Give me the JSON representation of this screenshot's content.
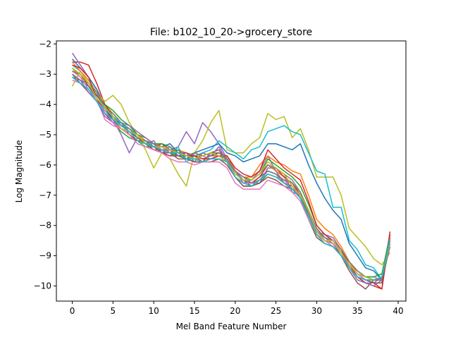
{
  "chart_data": {
    "type": "line",
    "title": "File: b102_10_20->grocery_store",
    "xlabel": "Mel Band Feature Number",
    "ylabel": "Log Magnitude",
    "xlim": [
      -1.95,
      40.95
    ],
    "ylim": [
      -10.5,
      -1.9
    ],
    "xticks": [
      0,
      5,
      10,
      15,
      20,
      25,
      30,
      35,
      40
    ],
    "yticks": [
      -10,
      -9,
      -8,
      -7,
      -6,
      -5,
      -4,
      -3,
      -2
    ],
    "xtick_labels": [
      "0",
      "5",
      "10",
      "15",
      "20",
      "25",
      "30",
      "35",
      "40"
    ],
    "ytick_labels": [
      "−10",
      "−9",
      "−8",
      "−7",
      "−6",
      "−5",
      "−4",
      "−3",
      "−2"
    ],
    "grid": false,
    "legend": "none",
    "x": [
      0,
      1,
      2,
      3,
      4,
      5,
      6,
      7,
      8,
      9,
      10,
      11,
      12,
      13,
      14,
      15,
      16,
      17,
      18,
      19,
      20,
      21,
      22,
      23,
      24,
      25,
      26,
      27,
      28,
      29,
      30,
      31,
      32,
      33,
      34,
      35,
      36,
      37,
      38,
      39
    ],
    "base_curve": [
      -2.9,
      -3.15,
      -3.35,
      -3.75,
      -4.15,
      -4.45,
      -4.7,
      -4.9,
      -5.1,
      -5.25,
      -5.35,
      -5.45,
      -5.55,
      -5.6,
      -5.7,
      -5.75,
      -5.8,
      -5.75,
      -5.65,
      -5.8,
      -6.3,
      -6.55,
      -6.6,
      -6.45,
      -6.2,
      -6.3,
      -6.5,
      -6.7,
      -7.0,
      -7.6,
      -8.2,
      -8.5,
      -8.6,
      -8.9,
      -9.3,
      -9.6,
      -9.75,
      -9.8,
      -9.75,
      -8.4
    ],
    "colors": [
      "#1f77b4",
      "#ff7f0e",
      "#2ca02c",
      "#d62728",
      "#9467bd",
      "#8c564b",
      "#e377c2",
      "#7f7f7f",
      "#bcbd22",
      "#17becf"
    ],
    "series": [
      {
        "values": [
          -3.0,
          -3.2,
          -3.4,
          -3.8,
          -4.2,
          -4.5,
          -4.8,
          -5.0,
          -5.2,
          -5.3,
          -5.4,
          -5.5,
          -5.5,
          -5.7,
          -5.8,
          -5.8,
          -5.9,
          -5.8,
          -5.7,
          -5.9,
          -6.4,
          -6.6,
          -6.6,
          -6.4,
          -6.2,
          -6.3,
          -6.5,
          -6.6,
          -7.0,
          -7.6,
          -8.2,
          -8.5,
          -8.6,
          -8.9,
          -9.3,
          -9.6,
          -9.8,
          -9.9,
          -9.9,
          -8.5
        ]
      },
      {
        "values": [
          -2.8,
          -3.1,
          -3.3,
          -3.6,
          -4.0,
          -4.3,
          -4.6,
          -4.8,
          -5.0,
          -5.1,
          -5.3,
          -5.4,
          -5.6,
          -5.5,
          -5.6,
          -5.7,
          -5.7,
          -5.6,
          -5.6,
          -5.7,
          -6.2,
          -6.4,
          -6.5,
          -6.3,
          -6.0,
          -6.2,
          -6.4,
          -6.8,
          -7.1,
          -7.7,
          -8.3,
          -8.6,
          -8.7,
          -9.0,
          -9.4,
          -9.7,
          -9.8,
          -9.8,
          -9.8,
          -8.4
        ]
      },
      {
        "values": [
          -3.1,
          -3.3,
          -3.5,
          -3.9,
          -4.3,
          -4.6,
          -4.9,
          -5.1,
          -5.2,
          -5.4,
          -5.4,
          -5.5,
          -5.6,
          -5.7,
          -5.8,
          -5.9,
          -5.9,
          -5.9,
          -5.8,
          -5.9,
          -6.4,
          -6.7,
          -6.7,
          -6.6,
          -6.3,
          -6.4,
          -6.6,
          -6.8,
          -7.1,
          -7.6,
          -8.1,
          -8.4,
          -8.5,
          -8.8,
          -9.2,
          -9.5,
          -9.7,
          -9.7,
          -9.6,
          -8.3
        ]
      },
      {
        "values": [
          -2.6,
          -2.6,
          -2.7,
          -3.3,
          -4.0,
          -4.4,
          -4.7,
          -4.8,
          -5.0,
          -5.2,
          -5.4,
          -5.3,
          -5.5,
          -5.6,
          -5.6,
          -5.7,
          -5.8,
          -5.7,
          -5.6,
          -5.8,
          -6.3,
          -6.5,
          -6.6,
          -6.4,
          -6.0,
          -6.1,
          -6.4,
          -6.6,
          -7.0,
          -7.5,
          -8.2,
          -8.5,
          -8.6,
          -8.9,
          -9.3,
          -9.7,
          -9.8,
          -9.9,
          -10.1,
          -8.2
        ]
      },
      {
        "values": [
          -2.3,
          -2.7,
          -3.1,
          -3.5,
          -4.0,
          -4.5,
          -5.0,
          -5.6,
          -5.1,
          -5.3,
          -5.2,
          -5.6,
          -5.5,
          -5.4,
          -4.9,
          -5.3,
          -4.6,
          -4.9,
          -5.3,
          -5.8,
          -6.2,
          -6.6,
          -6.5,
          -6.2,
          -5.7,
          -6.2,
          -6.6,
          -6.8,
          -7.0,
          -7.5,
          -8.2,
          -8.3,
          -8.4,
          -8.8,
          -9.4,
          -9.7,
          -9.9,
          -9.9,
          -9.7,
          -8.6
        ]
      },
      {
        "values": [
          -3.0,
          -3.3,
          -3.6,
          -3.9,
          -4.2,
          -4.5,
          -4.6,
          -5.0,
          -5.2,
          -5.2,
          -5.4,
          -5.6,
          -5.6,
          -5.5,
          -5.8,
          -5.7,
          -5.9,
          -5.6,
          -5.5,
          -5.9,
          -6.2,
          -6.5,
          -6.7,
          -6.5,
          -6.2,
          -6.3,
          -6.6,
          -6.7,
          -7.1,
          -7.7,
          -8.3,
          -8.5,
          -8.6,
          -9.0,
          -9.5,
          -9.9,
          -10.1,
          -9.8,
          -9.8,
          -8.6
        ]
      },
      {
        "values": [
          -2.9,
          -3.1,
          -3.5,
          -3.8,
          -4.5,
          -4.7,
          -4.8,
          -4.9,
          -5.0,
          -5.3,
          -5.4,
          -5.4,
          -5.6,
          -5.6,
          -5.8,
          -5.8,
          -5.7,
          -5.8,
          -5.8,
          -5.9,
          -6.4,
          -6.6,
          -6.6,
          -6.5,
          -6.3,
          -6.4,
          -6.5,
          -6.8,
          -7.0,
          -7.5,
          -8.1,
          -8.5,
          -8.7,
          -9.0,
          -9.3,
          -9.5,
          -9.7,
          -9.7,
          -9.8,
          -8.5
        ]
      },
      {
        "values": [
          -3.1,
          -3.2,
          -3.3,
          -3.7,
          -4.1,
          -4.3,
          -4.6,
          -4.9,
          -5.1,
          -5.2,
          -5.3,
          -5.5,
          -5.5,
          -5.6,
          -5.7,
          -5.7,
          -5.8,
          -5.7,
          -5.7,
          -5.8,
          -6.3,
          -6.5,
          -6.6,
          -6.5,
          -6.2,
          -6.3,
          -6.5,
          -6.6,
          -6.9,
          -7.6,
          -8.2,
          -8.4,
          -8.6,
          -8.9,
          -9.2,
          -9.6,
          -9.7,
          -9.8,
          -9.7,
          -8.4
        ]
      },
      {
        "values": [
          -3.4,
          -2.9,
          -3.3,
          -3.6,
          -3.9,
          -3.7,
          -4.0,
          -4.6,
          -5.0,
          -5.5,
          -6.1,
          -5.6,
          -5.8,
          -6.3,
          -6.7,
          -5.6,
          -5.2,
          -4.6,
          -4.2,
          -5.5,
          -5.6,
          -5.6,
          -5.3,
          -5.1,
          -4.3,
          -4.5,
          -4.4,
          -5.1,
          -4.8,
          -5.5,
          -6.4,
          -6.4,
          -6.4,
          -7.0,
          -8.1,
          -8.4,
          -8.7,
          -9.1,
          -9.3,
          -8.9
        ]
      },
      {
        "values": [
          -2.7,
          -2.9,
          -3.2,
          -3.6,
          -4.2,
          -4.4,
          -4.6,
          -4.8,
          -5.0,
          -5.3,
          -5.3,
          -5.6,
          -5.7,
          -5.4,
          -5.9,
          -5.7,
          -5.6,
          -5.5,
          -5.2,
          -5.4,
          -5.6,
          -5.8,
          -5.5,
          -5.4,
          -4.9,
          -4.8,
          -4.7,
          -4.9,
          -5.0,
          -5.6,
          -6.2,
          -6.3,
          -7.4,
          -7.4,
          -8.5,
          -8.8,
          -9.3,
          -9.4,
          -9.8,
          -8.4
        ]
      },
      {
        "values": [
          -2.5,
          -2.8,
          -3.1,
          -3.5,
          -4.1,
          -4.5,
          -4.7,
          -4.9,
          -5.1,
          -5.3,
          -5.4,
          -5.4,
          -5.3,
          -5.6,
          -5.8,
          -5.6,
          -5.5,
          -5.4,
          -5.3,
          -5.6,
          -5.7,
          -5.9,
          -5.8,
          -5.7,
          -5.3,
          -5.3,
          -5.4,
          -5.5,
          -5.3,
          -6.0,
          -6.6,
          -7.1,
          -7.5,
          -7.8,
          -8.6,
          -9.0,
          -9.4,
          -9.5,
          -9.8,
          -8.6
        ]
      },
      {
        "values": [
          -2.6,
          -2.9,
          -3.2,
          -3.6,
          -4.0,
          -4.4,
          -4.7,
          -4.9,
          -5.0,
          -5.2,
          -5.3,
          -5.5,
          -5.6,
          -5.6,
          -5.7,
          -5.7,
          -5.8,
          -5.8,
          -5.7,
          -5.9,
          -6.2,
          -6.4,
          -6.4,
          -6.0,
          -5.7,
          -5.9,
          -6.0,
          -6.2,
          -6.3,
          -7.0,
          -7.8,
          -8.1,
          -8.3,
          -8.7,
          -9.2,
          -9.6,
          -9.7,
          -9.8,
          -9.7,
          -8.5
        ]
      },
      {
        "values": [
          -2.8,
          -3.0,
          -3.3,
          -3.7,
          -4.0,
          -4.2,
          -4.5,
          -4.7,
          -5.0,
          -5.1,
          -5.3,
          -5.3,
          -5.4,
          -5.6,
          -5.7,
          -5.6,
          -5.7,
          -5.6,
          -5.6,
          -5.8,
          -6.2,
          -6.4,
          -6.5,
          -6.3,
          -5.8,
          -6.0,
          -6.2,
          -6.4,
          -6.7,
          -7.3,
          -8.0,
          -8.3,
          -8.5,
          -8.8,
          -9.2,
          -9.5,
          -9.7,
          -9.7,
          -9.6,
          -8.4
        ]
      },
      {
        "values": [
          -2.7,
          -2.8,
          -3.1,
          -3.8,
          -4.3,
          -4.6,
          -4.8,
          -5.0,
          -5.2,
          -5.3,
          -5.5,
          -5.6,
          -5.7,
          -5.7,
          -5.7,
          -5.7,
          -5.8,
          -5.8,
          -5.7,
          -5.7,
          -6.1,
          -6.3,
          -6.4,
          -6.2,
          -5.5,
          -5.8,
          -6.1,
          -6.3,
          -6.5,
          -7.2,
          -8.0,
          -8.3,
          -8.5,
          -8.8,
          -9.3,
          -9.7,
          -9.9,
          -10.0,
          -10.1,
          -8.3
        ]
      },
      {
        "values": [
          -3.0,
          -3.2,
          -3.6,
          -3.9,
          -4.4,
          -4.6,
          -4.6,
          -4.7,
          -4.9,
          -5.1,
          -5.3,
          -5.6,
          -5.4,
          -5.7,
          -5.6,
          -5.9,
          -5.6,
          -5.7,
          -5.4,
          -5.9,
          -6.2,
          -6.4,
          -6.6,
          -6.6,
          -6.1,
          -6.1,
          -6.3,
          -6.9,
          -7.0,
          -7.5,
          -8.2,
          -8.5,
          -8.5,
          -8.9,
          -9.4,
          -9.8,
          -9.9,
          -10.0,
          -9.8,
          -8.7
        ]
      },
      {
        "values": [
          -2.9,
          -3.0,
          -3.4,
          -3.7,
          -4.0,
          -4.4,
          -4.7,
          -4.9,
          -5.1,
          -5.3,
          -5.5,
          -5.5,
          -5.6,
          -5.8,
          -5.8,
          -5.9,
          -5.9,
          -5.9,
          -5.8,
          -6.0,
          -6.4,
          -6.7,
          -6.7,
          -6.6,
          -6.4,
          -6.5,
          -6.7,
          -6.8,
          -7.1,
          -7.8,
          -8.4,
          -8.6,
          -8.7,
          -9.0,
          -9.4,
          -9.7,
          -9.8,
          -9.9,
          -9.9,
          -8.6
        ]
      },
      {
        "values": [
          -3.2,
          -3.3,
          -3.5,
          -3.9,
          -4.2,
          -4.6,
          -4.8,
          -5.0,
          -5.3,
          -5.4,
          -5.5,
          -5.6,
          -5.8,
          -5.9,
          -5.9,
          -6.0,
          -5.9,
          -5.9,
          -5.9,
          -6.1,
          -6.6,
          -6.8,
          -6.8,
          -6.8,
          -6.5,
          -6.6,
          -6.7,
          -6.9,
          -7.2,
          -7.8,
          -8.3,
          -8.5,
          -8.6,
          -8.9,
          -9.3,
          -9.6,
          -9.8,
          -9.8,
          -9.7,
          -8.5
        ]
      },
      {
        "values": [
          -2.9,
          -3.0,
          -3.3,
          -3.6,
          -4.1,
          -4.4,
          -4.7,
          -4.8,
          -5.1,
          -5.2,
          -5.3,
          -5.4,
          -5.5,
          -5.5,
          -5.7,
          -5.6,
          -5.7,
          -5.6,
          -5.6,
          -5.8,
          -6.2,
          -6.5,
          -6.5,
          -6.3,
          -6.0,
          -6.1,
          -6.3,
          -6.5,
          -6.9,
          -7.5,
          -8.1,
          -8.4,
          -8.5,
          -8.8,
          -9.2,
          -9.5,
          -9.7,
          -9.8,
          -9.7,
          -8.4
        ]
      },
      {
        "values": [
          -2.8,
          -3.0,
          -3.3,
          -3.8,
          -4.1,
          -4.4,
          -4.8,
          -4.9,
          -5.0,
          -5.3,
          -5.4,
          -5.4,
          -5.5,
          -5.6,
          -5.7,
          -5.8,
          -5.7,
          -5.6,
          -5.7,
          -5.9,
          -6.3,
          -6.5,
          -6.5,
          -6.3,
          -5.9,
          -6.1,
          -6.3,
          -6.7,
          -7.0,
          -7.5,
          -8.2,
          -8.5,
          -8.5,
          -8.9,
          -9.3,
          -9.6,
          -9.7,
          -9.8,
          -9.7,
          -8.6
        ]
      },
      {
        "values": [
          -3.1,
          -3.3,
          -3.5,
          -3.9,
          -4.3,
          -4.5,
          -4.7,
          -4.9,
          -5.2,
          -5.3,
          -5.4,
          -5.5,
          -5.6,
          -5.6,
          -5.8,
          -5.8,
          -5.9,
          -5.8,
          -5.8,
          -5.9,
          -6.4,
          -6.6,
          -6.7,
          -6.5,
          -6.3,
          -6.4,
          -6.6,
          -6.8,
          -7.1,
          -7.7,
          -8.3,
          -8.6,
          -8.7,
          -9.0,
          -9.4,
          -9.7,
          -9.8,
          -9.8,
          -9.7,
          -8.5
        ]
      }
    ]
  }
}
